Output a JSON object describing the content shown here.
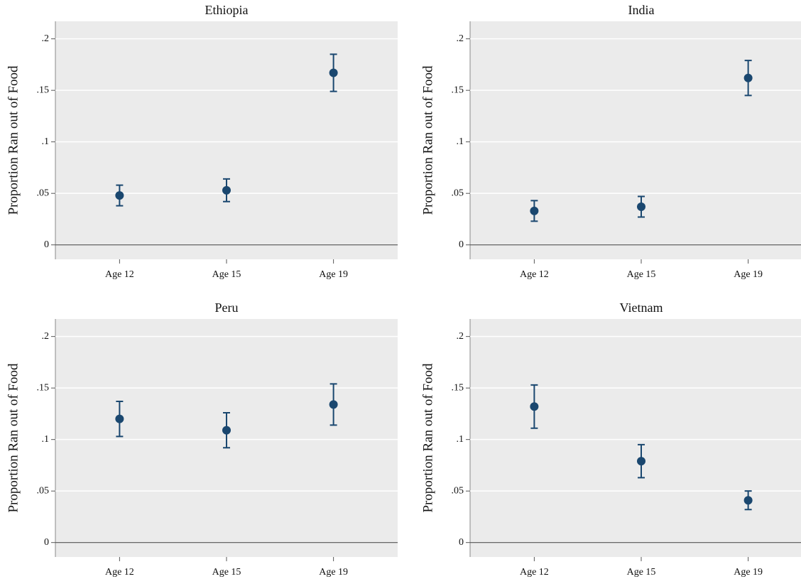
{
  "chart_data": [
    {
      "type": "errorbar",
      "title": "Ethiopia",
      "ylabel": "Proportion Ran out of Food",
      "categories": [
        "Age 12",
        "Age 15",
        "Age 19"
      ],
      "values": [
        0.048,
        0.053,
        0.167
      ],
      "errors": [
        0.01,
        0.011,
        0.018
      ],
      "color": "#1a476f",
      "ylim": [
        -0.014,
        0.217
      ],
      "yticks": [
        0,
        {
          "value": 0.05,
          "label": ".05"
        },
        {
          "value": 0.1,
          "label": ".1"
        },
        {
          "value": 0.15,
          "label": ".15"
        },
        {
          "value": 0.2,
          "label": ".2"
        }
      ],
      "grid": true
    },
    {
      "type": "errorbar",
      "title": "India",
      "ylabel": "Proportion Ran out of Food",
      "categories": [
        "Age 12",
        "Age 15",
        "Age 19"
      ],
      "values": [
        0.033,
        0.037,
        0.162
      ],
      "errors": [
        0.01,
        0.01,
        0.017
      ],
      "color": "#1a476f",
      "ylim": [
        -0.014,
        0.217
      ],
      "yticks": [
        0,
        {
          "value": 0.05,
          "label": ".05"
        },
        {
          "value": 0.1,
          "label": ".1"
        },
        {
          "value": 0.15,
          "label": ".15"
        },
        {
          "value": 0.2,
          "label": ".2"
        }
      ],
      "grid": true
    },
    {
      "type": "errorbar",
      "title": "Peru",
      "ylabel": "Proportion Ran out of Food",
      "categories": [
        "Age 12",
        "Age 15",
        "Age 19"
      ],
      "values": [
        0.12,
        0.109,
        0.134
      ],
      "errors": [
        0.017,
        0.017,
        0.02
      ],
      "color": "#1a476f",
      "ylim": [
        -0.014,
        0.217
      ],
      "yticks": [
        0,
        {
          "value": 0.05,
          "label": ".05"
        },
        {
          "value": 0.1,
          "label": ".1"
        },
        {
          "value": 0.15,
          "label": ".15"
        },
        {
          "value": 0.2,
          "label": ".2"
        }
      ],
      "grid": true
    },
    {
      "type": "errorbar",
      "title": "Vietnam",
      "ylabel": "Proportion Ran out of Food",
      "categories": [
        "Age 12",
        "Age 15",
        "Age 19"
      ],
      "values": [
        0.132,
        0.079,
        0.041
      ],
      "errors": [
        0.021,
        0.016,
        0.009
      ],
      "color": "#1a476f",
      "ylim": [
        -0.014,
        0.217
      ],
      "yticks": [
        0,
        {
          "value": 0.05,
          "label": ".05"
        },
        {
          "value": 0.1,
          "label": ".1"
        },
        {
          "value": 0.15,
          "label": ".15"
        },
        {
          "value": 0.2,
          "label": ".2"
        }
      ],
      "grid": true
    }
  ]
}
